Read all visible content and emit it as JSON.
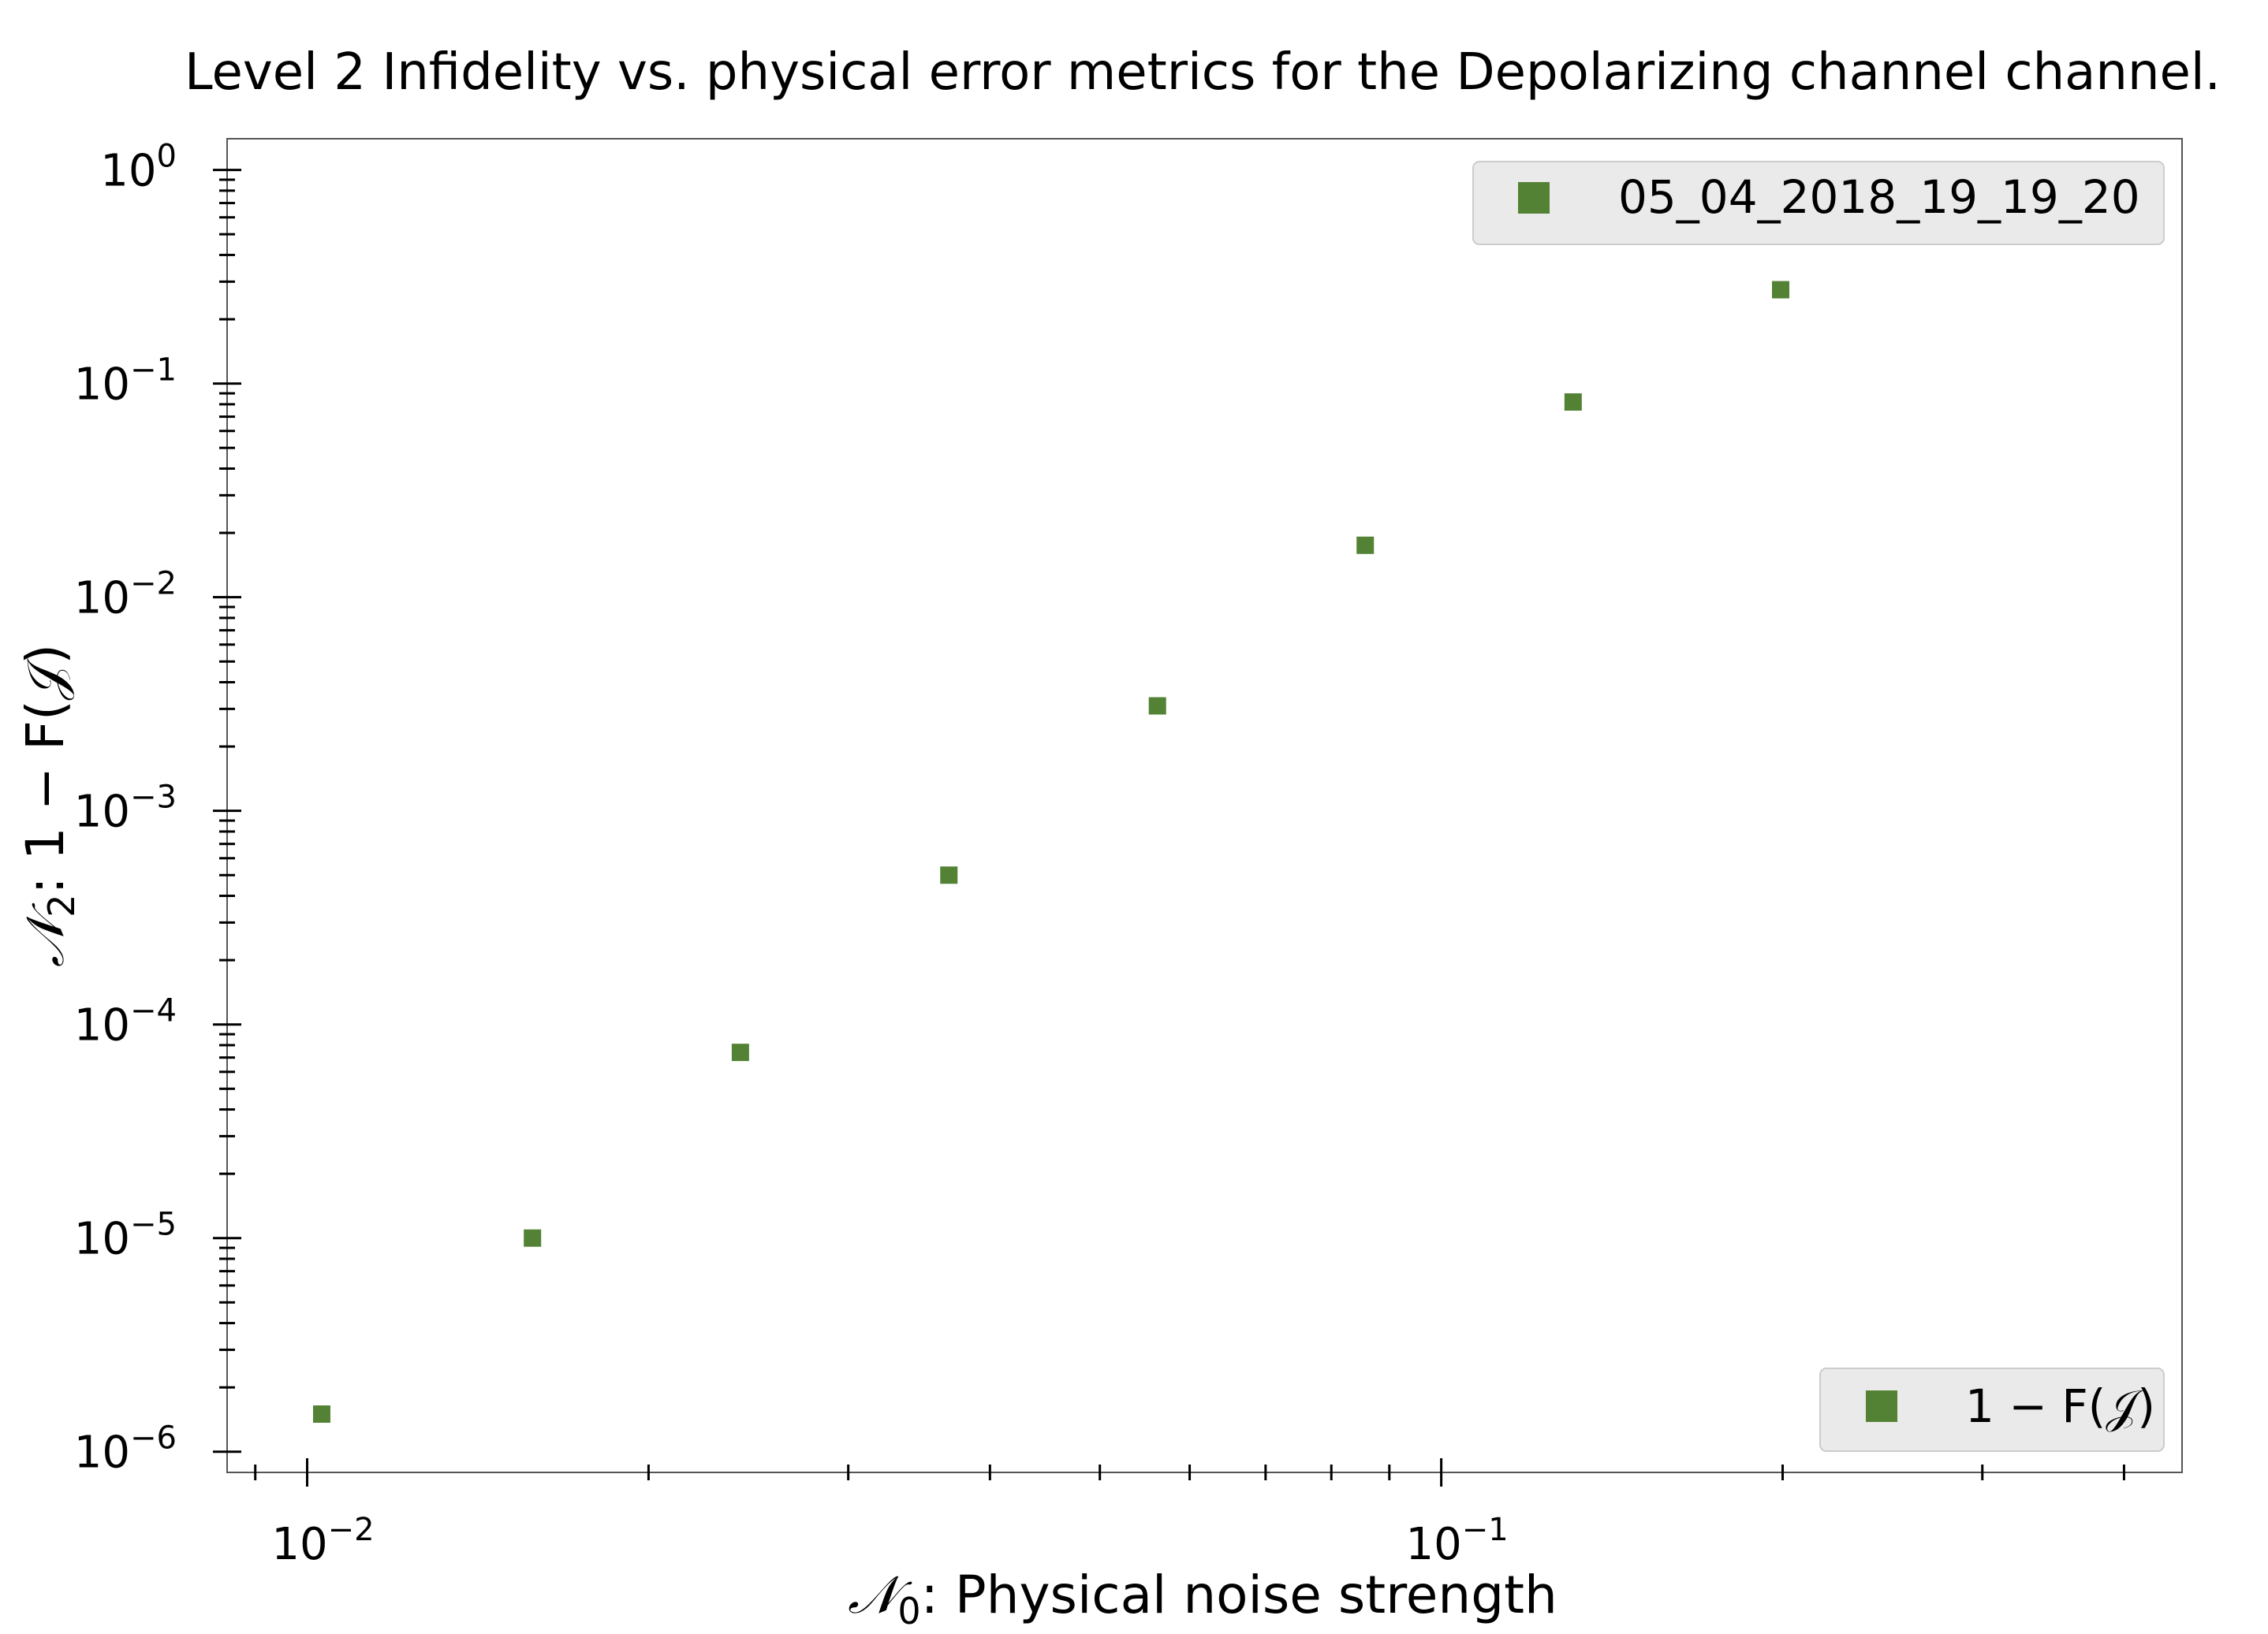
{
  "chart_data": {
    "type": "scatter",
    "title": "Level 2 Infidelity vs. physical error metrics for the Depolarizing channel channel.",
    "xlabel": {
      "symbol": "𝒩",
      "sub": "0",
      "text": ": Physical noise strength"
    },
    "ylabel": {
      "symbol": "𝒩",
      "sub": "2",
      "text": ": 1 − F(𝒥)"
    },
    "xscale": "log",
    "yscale": "log",
    "xlim": [
      0.0085,
      0.45
    ],
    "ylim": [
      8e-07,
      1.4
    ],
    "grid": false,
    "x_ticks": [
      {
        "base": "10",
        "exp": "−2"
      },
      {
        "base": "10",
        "exp": "−1"
      }
    ],
    "y_ticks": [
      {
        "base": "10",
        "exp": "0"
      },
      {
        "base": "10",
        "exp": "−1"
      },
      {
        "base": "10",
        "exp": "−2"
      },
      {
        "base": "10",
        "exp": "−3"
      },
      {
        "base": "10",
        "exp": "−4"
      },
      {
        "base": "10",
        "exp": "−5"
      },
      {
        "base": "10",
        "exp": "−6"
      }
    ],
    "series": [
      {
        "name": "1 − F(𝒥)",
        "color": "#548235",
        "marker": "square",
        "x": [
          0.0103,
          0.0158,
          0.0241,
          0.0368,
          0.0562,
          0.0857,
          0.1307,
          0.1992
        ],
        "y": [
          1.5e-06,
          1e-05,
          7.4e-05,
          0.0005,
          0.0031,
          0.0175,
          0.082,
          0.275
        ]
      }
    ],
    "legends": [
      {
        "position": "top-right",
        "label": "05_04_2018_19_19_20",
        "color": "#548235"
      },
      {
        "position": "bottom-right",
        "label": "1 − F(𝒥)",
        "color": "#548235"
      }
    ]
  }
}
